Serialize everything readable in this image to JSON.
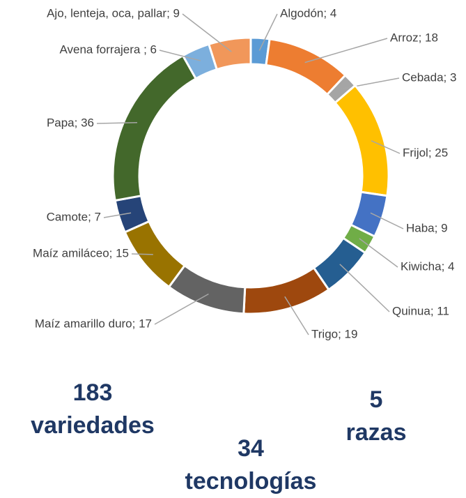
{
  "chart_data": {
    "type": "donut",
    "labels": [
      "Algodón; 4",
      "Arroz; 18",
      "Cebada; 3",
      "Frijol; 25",
      "Haba; 9",
      "Kiwicha; 4",
      "Quinua; 11",
      "Trigo; 19",
      "Maíz amarillo duro; 17",
      "Maíz amiláceo; 15",
      "Camote; 7",
      "Papa; 36",
      "Avena forrajera ; 6",
      "Ajo, lenteja, oca, pallar; 9"
    ],
    "values": [
      4,
      18,
      3,
      25,
      9,
      4,
      11,
      19,
      17,
      15,
      7,
      36,
      6,
      9
    ],
    "colors": [
      "#5b9bd5",
      "#ed7d31",
      "#a5a5a5",
      "#ffc000",
      "#4472c4",
      "#70ad47",
      "#255e91",
      "#9e480e",
      "#636363",
      "#997300",
      "#264478",
      "#43682b",
      "#7cafdd",
      "#f1975a"
    ],
    "annotations": [
      {
        "value": 183,
        "text": "variedades"
      },
      {
        "value": 5,
        "text": "razas"
      },
      {
        "value": 34,
        "text": "tecnologías"
      }
    ]
  }
}
